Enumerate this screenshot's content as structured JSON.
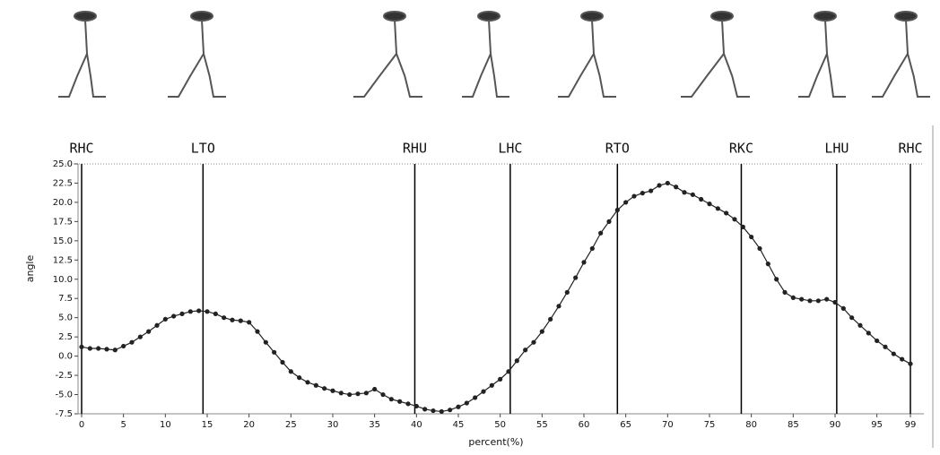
{
  "chart_data": {
    "type": "line",
    "x_label": "percent(%)",
    "y_label": "angle",
    "xlim": [
      0,
      99
    ],
    "ylim": [
      -7.5,
      25
    ],
    "xticks": [
      0,
      5,
      10,
      15,
      20,
      25,
      30,
      35,
      40,
      45,
      50,
      55,
      60,
      65,
      70,
      75,
      80,
      85,
      90,
      95,
      99
    ],
    "yticks": [
      {
        "value": 25,
        "label": "25.0"
      },
      22.5,
      {
        "value": 20,
        "label": "20.0"
      },
      17.5,
      {
        "value": 15,
        "label": "15.0"
      },
      12.5,
      {
        "value": 10,
        "label": "10.0"
      },
      7.5,
      {
        "value": 5,
        "label": "5.0"
      },
      2.5,
      {
        "value": 0,
        "label": "0.0"
      },
      -2.5,
      {
        "value": -5,
        "label": "-5.0"
      },
      -7.5
    ],
    "events": [
      {
        "label": "RHC",
        "x": 0
      },
      {
        "label": "LTO",
        "x": 14.5
      },
      {
        "label": "RHU",
        "x": 39.8
      },
      {
        "label": "LHC",
        "x": 51.2
      },
      {
        "label": "RTO",
        "x": 64
      },
      {
        "label": "RKC",
        "x": 78.8
      },
      {
        "label": "LHU",
        "x": 90.2
      },
      {
        "label": "RHC",
        "x": 99
      }
    ],
    "series": [
      {
        "color": "#222222",
        "x": [
          0,
          1,
          2,
          3,
          4,
          5,
          6,
          7,
          8,
          9,
          10,
          11,
          12,
          13,
          14,
          15,
          16,
          17,
          18,
          19,
          20,
          21,
          22,
          23,
          24,
          25,
          26,
          27,
          28,
          29,
          30,
          31,
          32,
          33,
          34,
          35,
          36,
          37,
          38,
          39,
          40,
          41,
          42,
          43,
          44,
          45,
          46,
          47,
          48,
          49,
          50,
          51,
          52,
          53,
          54,
          55,
          56,
          57,
          58,
          59,
          60,
          61,
          62,
          63,
          64,
          65,
          66,
          67,
          68,
          69,
          70,
          71,
          72,
          73,
          74,
          75,
          76,
          77,
          78,
          79,
          80,
          81,
          82,
          83,
          84,
          85,
          86,
          87,
          88,
          89,
          90,
          91,
          92,
          93,
          94,
          95,
          96,
          97,
          98,
          99
        ],
        "values": [
          1.2,
          1.0,
          1.0,
          0.9,
          0.8,
          1.3,
          1.8,
          2.5,
          3.2,
          4.0,
          4.8,
          5.2,
          5.5,
          5.8,
          5.9,
          5.8,
          5.5,
          5.0,
          4.7,
          4.6,
          4.4,
          3.2,
          1.8,
          0.5,
          -0.8,
          -2.0,
          -2.8,
          -3.4,
          -3.8,
          -4.2,
          -4.5,
          -4.8,
          -5.0,
          -4.9,
          -4.8,
          -4.3,
          -5.0,
          -5.6,
          -5.9,
          -6.2,
          -6.5,
          -6.9,
          -7.1,
          -7.2,
          -7.0,
          -6.6,
          -6.1,
          -5.4,
          -4.6,
          -3.8,
          -3.0,
          -2.0,
          -0.6,
          0.8,
          1.8,
          3.2,
          4.8,
          6.5,
          8.3,
          10.2,
          12.2,
          14.0,
          16.0,
          17.5,
          19.0,
          20.0,
          20.8,
          21.2,
          21.5,
          22.2,
          22.5,
          22.0,
          21.3,
          21.0,
          20.4,
          19.8,
          19.2,
          18.6,
          17.8,
          16.8,
          15.5,
          14.0,
          12.0,
          10.0,
          8.3,
          7.6,
          7.4,
          7.2,
          7.2,
          7.4,
          7.0,
          6.2,
          5.0,
          4.0,
          3.0,
          2.0,
          1.2,
          0.3,
          -0.4,
          -1.0
        ]
      }
    ]
  }
}
